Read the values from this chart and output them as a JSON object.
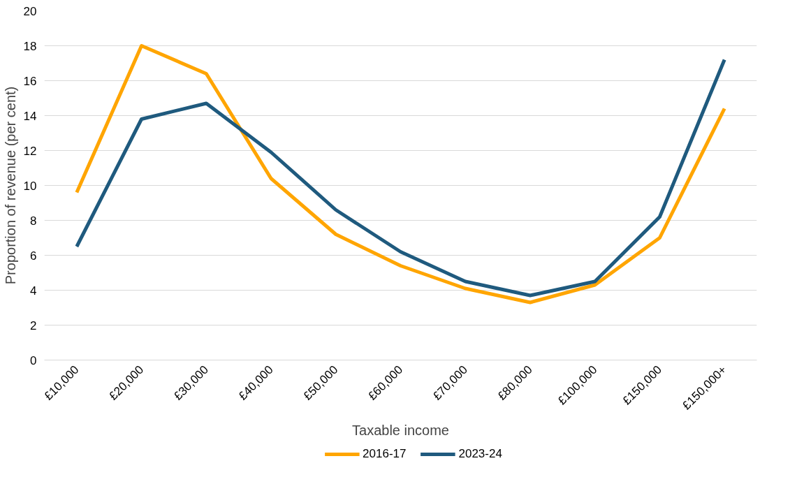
{
  "chart_data": {
    "type": "line",
    "xlabel": "Taxable income",
    "ylabel": "Proportion of revenue (per cent)",
    "categories": [
      "£10,000",
      "£20,000",
      "£30,000",
      "£40,000",
      "£50,000",
      "£60,000",
      "£70,000",
      "£80,000",
      "£100,000",
      "£150,000",
      "£150,000+"
    ],
    "series": [
      {
        "name": "2016-17",
        "color": "#ffa500",
        "values": [
          9.6,
          18.0,
          16.4,
          10.4,
          7.2,
          5.4,
          4.1,
          3.3,
          4.3,
          7.0,
          14.4
        ]
      },
      {
        "name": "2023-24",
        "color": "#1f5a7e",
        "values": [
          6.5,
          13.8,
          14.7,
          11.9,
          8.6,
          6.2,
          4.5,
          3.7,
          4.5,
          8.2,
          17.2
        ]
      }
    ],
    "ylim": [
      0,
      20
    ],
    "yticks": [
      0,
      2,
      4,
      6,
      8,
      10,
      12,
      14,
      16,
      18,
      20
    ],
    "grid": "y",
    "legend": "bottom",
    "marker": "none",
    "line_style": "solid"
  }
}
